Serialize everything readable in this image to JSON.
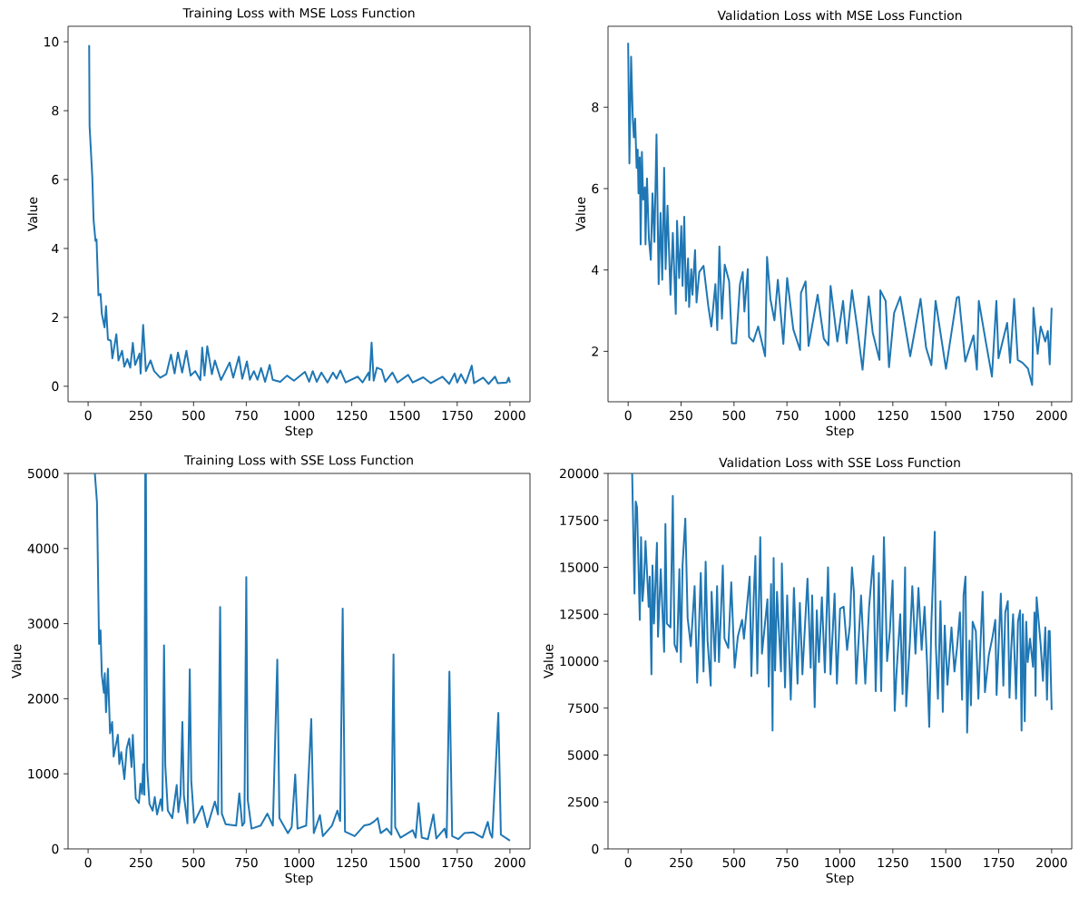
{
  "chart_data": [
    {
      "type": "line",
      "title": "Training Loss with MSE Loss Function",
      "xlabel": "Step",
      "ylabel": "Value",
      "xlim": [
        -95,
        2095
      ],
      "ylim": [
        -0.45,
        10.45
      ],
      "xticks": [
        0,
        250,
        500,
        750,
        1000,
        1250,
        1500,
        1750,
        2000
      ],
      "yticks": [
        0,
        2,
        4,
        6,
        8,
        10
      ],
      "x": [
        5,
        7,
        20,
        26,
        35,
        40,
        49,
        59,
        65,
        78,
        85,
        94,
        108,
        115,
        134,
        144,
        161,
        172,
        186,
        200,
        212,
        223,
        244,
        249,
        261,
        274,
        296,
        313,
        342,
        371,
        393,
        410,
        426,
        446,
        466,
        486,
        508,
        532,
        541,
        552,
        565,
        587,
        601,
        630,
        671,
        688,
        715,
        731,
        753,
        767,
        786,
        803,
        820,
        839,
        861,
        875,
        911,
        943,
        976,
        1028,
        1048,
        1065,
        1084,
        1106,
        1135,
        1161,
        1178,
        1196,
        1221,
        1278,
        1301,
        1330,
        1334,
        1344,
        1354,
        1369,
        1392,
        1409,
        1443,
        1467,
        1517,
        1539,
        1589,
        1625,
        1680,
        1712,
        1738,
        1750,
        1768,
        1790,
        1819,
        1830,
        1873,
        1899,
        1929,
        1942,
        1985,
        1994,
        2000
      ],
      "series": [
        {
          "color": "#1f77b4",
          "values": [
            9.9,
            7.56,
            6.06,
            4.83,
            4.22,
            4.26,
            2.64,
            2.68,
            2.11,
            1.71,
            2.33,
            1.36,
            1.32,
            0.81,
            1.51,
            0.75,
            1.03,
            0.57,
            0.79,
            0.54,
            1.26,
            0.62,
            0.95,
            0.37,
            1.78,
            0.44,
            0.75,
            0.44,
            0.25,
            0.35,
            0.92,
            0.37,
            0.98,
            0.4,
            1.03,
            0.31,
            0.44,
            0.18,
            1.12,
            0.31,
            1.16,
            0.35,
            0.75,
            0.18,
            0.69,
            0.25,
            0.86,
            0.22,
            0.72,
            0.19,
            0.44,
            0.19,
            0.53,
            0.13,
            0.62,
            0.19,
            0.13,
            0.31,
            0.16,
            0.42,
            0.13,
            0.44,
            0.13,
            0.4,
            0.11,
            0.4,
            0.22,
            0.46,
            0.11,
            0.28,
            0.11,
            0.4,
            0.18,
            1.27,
            0.16,
            0.54,
            0.48,
            0.13,
            0.4,
            0.11,
            0.33,
            0.11,
            0.26,
            0.09,
            0.28,
            0.07,
            0.37,
            0.11,
            0.35,
            0.09,
            0.6,
            0.09,
            0.25,
            0.07,
            0.28,
            0.09,
            0.11,
            0.25,
            0.11
          ]
        }
      ]
    },
    {
      "type": "line",
      "title": "Validation Loss with MSE Loss Function",
      "xlabel": "Step",
      "ylabel": "Value",
      "xlim": [
        -95,
        2095
      ],
      "ylim": [
        0.76,
        9.99
      ],
      "xticks": [
        0,
        250,
        500,
        750,
        1000,
        1250,
        1500,
        1750,
        2000
      ],
      "yticks": [
        2,
        4,
        6,
        8
      ],
      "x": [
        0,
        6,
        14,
        22,
        27,
        33,
        40,
        45,
        49,
        55,
        59,
        65,
        71,
        79,
        82,
        89,
        98,
        107,
        115,
        124,
        134,
        144,
        153,
        161,
        170,
        177,
        186,
        200,
        211,
        225,
        231,
        241,
        251,
        257,
        265,
        273,
        283,
        288,
        298,
        304,
        316,
        323,
        336,
        356,
        379,
        393,
        412,
        421,
        431,
        443,
        456,
        477,
        490,
        510,
        528,
        541,
        549,
        565,
        571,
        591,
        614,
        647,
        656,
        672,
        691,
        707,
        733,
        751,
        780,
        812,
        816,
        838,
        852,
        895,
        924,
        946,
        956,
        988,
        1015,
        1032,
        1057,
        1083,
        1107,
        1136,
        1155,
        1187,
        1191,
        1216,
        1232,
        1256,
        1285,
        1332,
        1381,
        1407,
        1432,
        1452,
        1501,
        1552,
        1562,
        1592,
        1631,
        1647,
        1656,
        1689,
        1718,
        1739,
        1749,
        1790,
        1804,
        1823,
        1840,
        1862,
        1888,
        1908,
        1914,
        1934,
        1948,
        1970,
        1982,
        1991,
        2000
      ],
      "series": [
        {
          "color": "#1f77b4",
          "values": [
            9.58,
            6.62,
            9.24,
            7.7,
            7.26,
            7.72,
            6.51,
            6.96,
            5.88,
            6.77,
            4.63,
            6.9,
            5.73,
            6.03,
            4.63,
            6.25,
            4.77,
            4.25,
            5.88,
            4.69,
            7.33,
            3.65,
            5.4,
            3.76,
            6.51,
            4.02,
            5.58,
            3.39,
            4.91,
            2.92,
            5.21,
            3.8,
            5.08,
            3.61,
            5.31,
            3.24,
            4.28,
            3.09,
            4.02,
            3.39,
            4.49,
            3.2,
            3.95,
            4.1,
            3.09,
            2.61,
            3.65,
            2.52,
            4.58,
            2.8,
            4.13,
            3.72,
            2.2,
            2.2,
            3.65,
            3.95,
            2.98,
            4.02,
            2.35,
            2.24,
            2.61,
            1.88,
            4.32,
            3.28,
            2.76,
            3.76,
            2.18,
            3.8,
            2.54,
            2.03,
            3.43,
            3.72,
            2.13,
            3.39,
            2.31,
            2.15,
            3.61,
            2.24,
            3.24,
            2.2,
            3.5,
            2.54,
            1.55,
            3.35,
            2.46,
            1.79,
            3.5,
            3.24,
            1.61,
            2.94,
            3.34,
            1.88,
            3.29,
            2.09,
            1.66,
            3.24,
            1.57,
            3.32,
            3.34,
            1.75,
            2.39,
            1.55,
            3.24,
            2.24,
            1.38,
            3.24,
            1.83,
            2.7,
            1.72,
            3.29,
            1.79,
            1.72,
            1.58,
            1.17,
            3.07,
            1.94,
            2.61,
            2.24,
            2.5,
            1.68,
            3.07
          ]
        }
      ]
    },
    {
      "type": "line",
      "title": "Training Loss with SSE Loss Function",
      "xlabel": "Step",
      "ylabel": "Value",
      "xlim": [
        -95,
        2095
      ],
      "ylim": [
        0,
        5000
      ],
      "xticks": [
        0,
        250,
        500,
        750,
        1000,
        1250,
        1500,
        1750,
        2000
      ],
      "yticks": [
        0,
        1000,
        2000,
        3000,
        4000,
        5000
      ],
      "x": [
        32,
        42,
        52,
        59,
        65,
        75,
        79,
        85,
        94,
        104,
        114,
        121,
        141,
        148,
        157,
        172,
        183,
        195,
        206,
        212,
        226,
        241,
        248,
        256,
        261,
        267,
        271,
        274,
        280,
        291,
        306,
        316,
        327,
        344,
        352,
        360,
        366,
        378,
        399,
        420,
        428,
        438,
        447,
        454,
        471,
        482,
        489,
        503,
        541,
        565,
        601,
        616,
        626,
        634,
        652,
        702,
        717,
        731,
        741,
        750,
        757,
        775,
        818,
        850,
        876,
        897,
        907,
        947,
        965,
        982,
        993,
        1034,
        1058,
        1070,
        1099,
        1113,
        1156,
        1182,
        1195,
        1207,
        1218,
        1264,
        1308,
        1337,
        1358,
        1373,
        1387,
        1416,
        1438,
        1448,
        1456,
        1481,
        1539,
        1553,
        1567,
        1582,
        1611,
        1637,
        1651,
        1690,
        1700,
        1713,
        1726,
        1755,
        1784,
        1827,
        1870,
        1895,
        1906,
        1916,
        1945,
        1957,
        2000
      ],
      "series": [
        {
          "color": "#1f77b4",
          "values": [
            5000,
            4620,
            2730,
            2910,
            2320,
            2080,
            2340,
            1820,
            2400,
            1540,
            1690,
            1230,
            1520,
            1130,
            1290,
            930,
            1340,
            1470,
            1090,
            1520,
            670,
            610,
            870,
            730,
            1130,
            720,
            5000,
            5000,
            1070,
            600,
            510,
            690,
            460,
            660,
            510,
            2710,
            1110,
            510,
            410,
            850,
            490,
            710,
            1690,
            710,
            340,
            2390,
            910,
            350,
            570,
            290,
            630,
            460,
            3220,
            470,
            330,
            310,
            740,
            310,
            350,
            3620,
            650,
            270,
            310,
            470,
            310,
            2520,
            410,
            210,
            290,
            990,
            270,
            310,
            1730,
            210,
            450,
            170,
            310,
            510,
            370,
            3200,
            230,
            170,
            310,
            330,
            370,
            410,
            210,
            270,
            190,
            2590,
            290,
            150,
            250,
            150,
            610,
            150,
            130,
            460,
            140,
            270,
            150,
            2360,
            170,
            130,
            210,
            220,
            150,
            360,
            210,
            150,
            1810,
            190,
            110
          ]
        }
      ]
    },
    {
      "type": "line",
      "title": "Validation Loss with SSE Loss Function",
      "xlabel": "Step",
      "ylabel": "Value",
      "xlim": [
        -95,
        2095
      ],
      "ylim": [
        0,
        20000
      ],
      "xticks": [
        0,
        250,
        500,
        750,
        1000,
        1250,
        1500,
        1750,
        2000
      ],
      "yticks": [
        0,
        2500,
        5000,
        7500,
        10000,
        12500,
        15000,
        17500,
        20000
      ],
      "x": [
        19,
        30,
        36,
        42,
        55,
        61,
        68,
        75,
        82,
        97,
        102,
        110,
        115,
        122,
        136,
        141,
        154,
        170,
        176,
        183,
        200,
        211,
        219,
        231,
        242,
        249,
        257,
        270,
        281,
        296,
        314,
        326,
        343,
        356,
        366,
        375,
        390,
        394,
        410,
        420,
        429,
        447,
        455,
        473,
        487,
        503,
        518,
        538,
        547,
        574,
        582,
        593,
        601,
        610,
        624,
        632,
        658,
        664,
        675,
        682,
        687,
        694,
        703,
        722,
        726,
        741,
        751,
        768,
        783,
        800,
        811,
        823,
        847,
        862,
        869,
        881,
        891,
        901,
        915,
        929,
        944,
        956,
        975,
        986,
        1001,
        1018,
        1034,
        1047,
        1057,
        1066,
        1077,
        1100,
        1120,
        1138,
        1158,
        1169,
        1184,
        1195,
        1208,
        1223,
        1236,
        1249,
        1259,
        1267,
        1285,
        1296,
        1308,
        1313,
        1331,
        1342,
        1357,
        1371,
        1386,
        1400,
        1412,
        1422,
        1432,
        1448,
        1453,
        1463,
        1475,
        1486,
        1495,
        1508,
        1527,
        1541,
        1553,
        1567,
        1577,
        1584,
        1593,
        1601,
        1612,
        1619,
        1627,
        1642,
        1654,
        1674,
        1685,
        1703,
        1721,
        1734,
        1740,
        1760,
        1772,
        1781,
        1793,
        1801,
        1809,
        1818,
        1832,
        1841,
        1851,
        1858,
        1864,
        1873,
        1880,
        1887,
        1898,
        1912,
        1919,
        1924,
        1929,
        1948,
        1959,
        1970,
        1978,
        1986,
        1991,
        2000
      ],
      "series": [
        {
          "color": "#1f77b4",
          "values": [
            20000,
            13600,
            18500,
            18200,
            12200,
            16600,
            13200,
            14300,
            16400,
            12900,
            14500,
            9300,
            15100,
            12000,
            16300,
            11300,
            14900,
            10500,
            17300,
            12000,
            11800,
            18800,
            10900,
            10500,
            14900,
            9950,
            15100,
            17600,
            12300,
            10800,
            14000,
            8850,
            14700,
            9450,
            15300,
            11100,
            8700,
            13700,
            10000,
            14000,
            9950,
            15100,
            11200,
            10700,
            14200,
            9650,
            11300,
            12200,
            11200,
            14500,
            9200,
            13400,
            15600,
            9350,
            16600,
            10400,
            13300,
            8650,
            14100,
            6300,
            15500,
            9500,
            13700,
            9450,
            15200,
            8600,
            13500,
            7950,
            13900,
            8800,
            13100,
            9300,
            14400,
            9650,
            13500,
            7550,
            12700,
            9950,
            13400,
            9400,
            15000,
            9300,
            13600,
            8800,
            12800,
            12900,
            10600,
            11900,
            15000,
            13700,
            8800,
            13500,
            8800,
            12900,
            15600,
            8400,
            14700,
            8400,
            16600,
            10000,
            11600,
            14300,
            7350,
            9300,
            12500,
            8250,
            15000,
            7600,
            11100,
            14000,
            10400,
            13900,
            10600,
            12900,
            9800,
            6500,
            12000,
            16900,
            10900,
            8000,
            13200,
            7300,
            11900,
            8750,
            11800,
            9450,
            10700,
            12600,
            7950,
            13500,
            14500,
            6200,
            11100,
            7650,
            12100,
            11600,
            8000,
            13700,
            8350,
            10300,
            11300,
            12200,
            8200,
            13600,
            8700,
            12600,
            13200,
            8050,
            10600,
            12500,
            8000,
            12100,
            12700,
            6300,
            12500,
            6800,
            12100,
            9950,
            11200,
            9700,
            12600,
            8150,
            13400,
            10900,
            8950,
            11800,
            7950,
            11600,
            11600,
            7400
          ]
        }
      ]
    }
  ]
}
